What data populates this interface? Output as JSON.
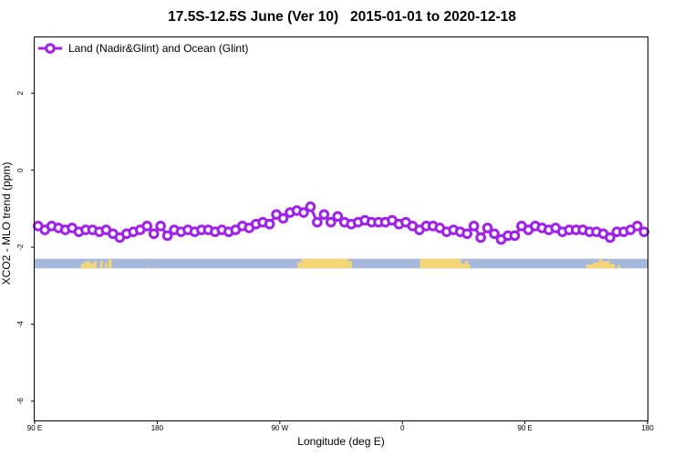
{
  "chart_data": {
    "type": "line",
    "title": "17.5S-12.5S June (Ver 10)   2015-01-01 to 2020-12-18",
    "xlabel": "Longitude (deg E)",
    "ylabel": "XCO2 - MLO trend (ppm)",
    "x_ticks": [
      {
        "lon": 90,
        "label": "90 E"
      },
      {
        "lon": 180,
        "label": "180"
      },
      {
        "lon": 270,
        "label": "90 W"
      },
      {
        "lon": 360,
        "label": "0"
      },
      {
        "lon": 450,
        "label": "90 E"
      },
      {
        "lon": 540,
        "label": "180"
      }
    ],
    "xlim": [
      90,
      540
    ],
    "y_ticks": [
      2,
      0,
      -2,
      -4,
      -6
    ],
    "ylim": [
      -6.5,
      3.45
    ],
    "grid": false,
    "legend_position": "top-left",
    "series": [
      {
        "name": "Land (Nadir&Glint) and Ocean (Glint)",
        "color": "#a020f0",
        "x": [
          92.5,
          97.5,
          102.5,
          107.5,
          112.5,
          117.5,
          122.5,
          127.5,
          132.5,
          137.5,
          142.5,
          147.5,
          152.5,
          157.5,
          162.5,
          167.5,
          172.5,
          177.5,
          182.5,
          187.5,
          192.5,
          197.5,
          202.5,
          207.5,
          212.5,
          217.5,
          222.5,
          227.5,
          232.5,
          237.5,
          242.5,
          247.5,
          252.5,
          257.5,
          262.5,
          267.5,
          272.5,
          277.5,
          282.5,
          287.5,
          292.5,
          297.5,
          302.5,
          307.5,
          312.5,
          317.5,
          322.5,
          327.5,
          332.5,
          337.5,
          342.5,
          347.5,
          352.5,
          357.5,
          362.5,
          367.5,
          372.5,
          377.5,
          382.5,
          387.5,
          392.5,
          397.5,
          402.5,
          407.5,
          412.5,
          417.5,
          422.5,
          427.5,
          432.5,
          437.5,
          442.5,
          447.5,
          452.5,
          457.5,
          462.5,
          467.5,
          472.5,
          477.5,
          482.5,
          487.5,
          492.5,
          497.5,
          502.5,
          507.5,
          512.5,
          517.5,
          522.5,
          527.5,
          532.5,
          537.5
        ],
        "y": [
          -1.45,
          -1.55,
          -1.45,
          -1.5,
          -1.55,
          -1.5,
          -1.6,
          -1.55,
          -1.55,
          -1.6,
          -1.55,
          -1.65,
          -1.75,
          -1.65,
          -1.6,
          -1.55,
          -1.45,
          -1.65,
          -1.45,
          -1.7,
          -1.55,
          -1.6,
          -1.55,
          -1.6,
          -1.55,
          -1.55,
          -1.6,
          -1.55,
          -1.6,
          -1.55,
          -1.45,
          -1.5,
          -1.4,
          -1.35,
          -1.4,
          -1.15,
          -1.25,
          -1.1,
          -1.05,
          -1.1,
          -0.95,
          -1.35,
          -1.15,
          -1.35,
          -1.2,
          -1.35,
          -1.4,
          -1.35,
          -1.3,
          -1.35,
          -1.35,
          -1.35,
          -1.3,
          -1.4,
          -1.35,
          -1.45,
          -1.55,
          -1.45,
          -1.45,
          -1.5,
          -1.6,
          -1.55,
          -1.6,
          -1.65,
          -1.45,
          -1.75,
          -1.5,
          -1.65,
          -1.8,
          -1.7,
          -1.7,
          -1.45,
          -1.55,
          -1.45,
          -1.5,
          -1.55,
          -1.5,
          -1.6,
          -1.55,
          -1.55,
          -1.55,
          -1.6,
          -1.6,
          -1.65,
          -1.75,
          -1.6,
          -1.6,
          -1.55,
          -1.45,
          -1.6
        ]
      }
    ],
    "land_band": {
      "y_range": [
        -2.55,
        -2.3
      ],
      "ocean_color": "#a6b8dc",
      "land_color": "#f5d676",
      "land_segments": [
        [
          124,
          126.5,
          0.45
        ],
        [
          126.5,
          131,
          0.7
        ],
        [
          131,
          134,
          0.55
        ],
        [
          134,
          135.5,
          0.8
        ],
        [
          138,
          140,
          0.75
        ],
        [
          141.5,
          143,
          0.6
        ],
        [
          144,
          146.5,
          0.9
        ],
        [
          173,
          174,
          0.2
        ],
        [
          283,
          286,
          0.65
        ],
        [
          286,
          320,
          1.0
        ],
        [
          320,
          323,
          0.75
        ],
        [
          373,
          403,
          1.0
        ],
        [
          403,
          406,
          0.5
        ],
        [
          406,
          408,
          0.8
        ],
        [
          408,
          410,
          0.4
        ],
        [
          495,
          500,
          0.4
        ],
        [
          500,
          504,
          0.6
        ],
        [
          504,
          507,
          0.9
        ],
        [
          507,
          510,
          0.7
        ],
        [
          510,
          512,
          0.8
        ],
        [
          512,
          516,
          0.45
        ],
        [
          518,
          520,
          0.3
        ]
      ]
    }
  }
}
